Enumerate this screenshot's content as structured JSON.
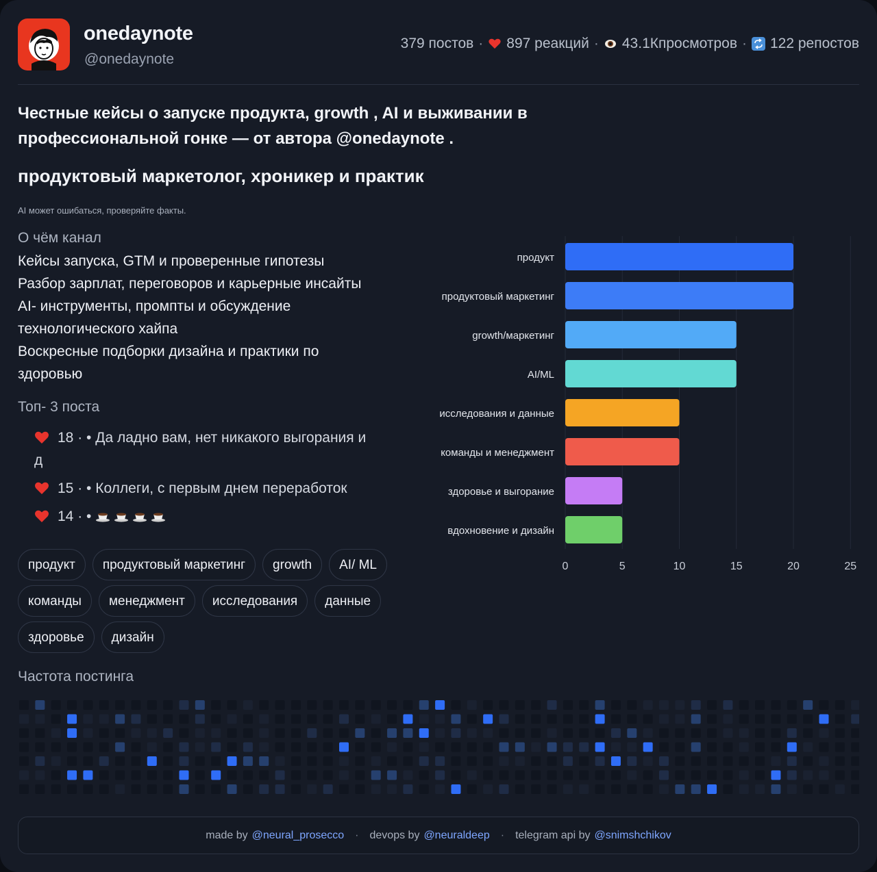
{
  "channel": {
    "name": "onedaynote",
    "handle": "@onedaynote"
  },
  "stats": {
    "posts": "379 постов",
    "reactions": "897 реакций",
    "views": "43.1Кпросмотров",
    "reposts": "122 репостов"
  },
  "description": {
    "line1": "Честные кейсы о запуске продукта, growth , AI и выживании в",
    "line2": "профессиональной гонке — от автора @onedaynote ."
  },
  "tagline": "продуктовый маркетолог, хроникер и практик",
  "disclaimer": "AI может ошибаться, проверяйте факты.",
  "about": {
    "title": "О чём канал",
    "items": [
      "Кейсы запуска, GTM и проверенные гипотезы",
      "Разбор зарплат, переговоров и карьерные инсайты",
      "AI- инструменты, промпты и обсуждение",
      "технологического хайпа",
      "Воскресные подборки дизайна и практики по",
      "здоровью"
    ]
  },
  "top_posts": {
    "title": "Топ- 3 поста",
    "items": [
      {
        "count": "18 · •",
        "text": "Да ладно вам, нет никакого выгорания и",
        "text_cont": "д"
      },
      {
        "count": "15 · •",
        "text": "Коллеги, с первым днем переработок"
      },
      {
        "count": "14 · •",
        "text": ""
      }
    ]
  },
  "tags": [
    "продукт",
    "продуктовый маркетинг",
    "growth",
    "AI/ ML",
    "команды",
    "менеджмент",
    "исследования",
    "данные",
    "здоровье",
    "дизайн"
  ],
  "frequency_title": "Частота постинга",
  "footer": {
    "made_by": "made by",
    "made_by_link": "@neural_prosecco",
    "devops_by": "devops by",
    "devops_link": "@neuraldeep",
    "api_by": "telegram api by",
    "api_link": "@snimshchikov"
  },
  "colors": {
    "accent": "#2f6df6",
    "card_bg": "#161b26",
    "heart": "#e8342d"
  },
  "chart_data": {
    "type": "bar",
    "orientation": "horizontal",
    "categories": [
      "продукт",
      "продуктовый маркетинг",
      "growth/маркетинг",
      "AI/ML",
      "исследования и данные",
      "команды и менеджмент",
      "здоровье и выгорание",
      "вдохновение и дизайн"
    ],
    "values": [
      20,
      20,
      15,
      15,
      10,
      10,
      5,
      5
    ],
    "colors": [
      "#2f6df6",
      "#3d7cf7",
      "#52aaf7",
      "#62d9d3",
      "#f5a524",
      "#ef5b4b",
      "#c57cf5",
      "#6fcf6a"
    ],
    "xlim": [
      0,
      25
    ],
    "xticks": [
      0,
      5,
      10,
      15,
      20,
      25
    ],
    "grid": true,
    "legend": false
  }
}
